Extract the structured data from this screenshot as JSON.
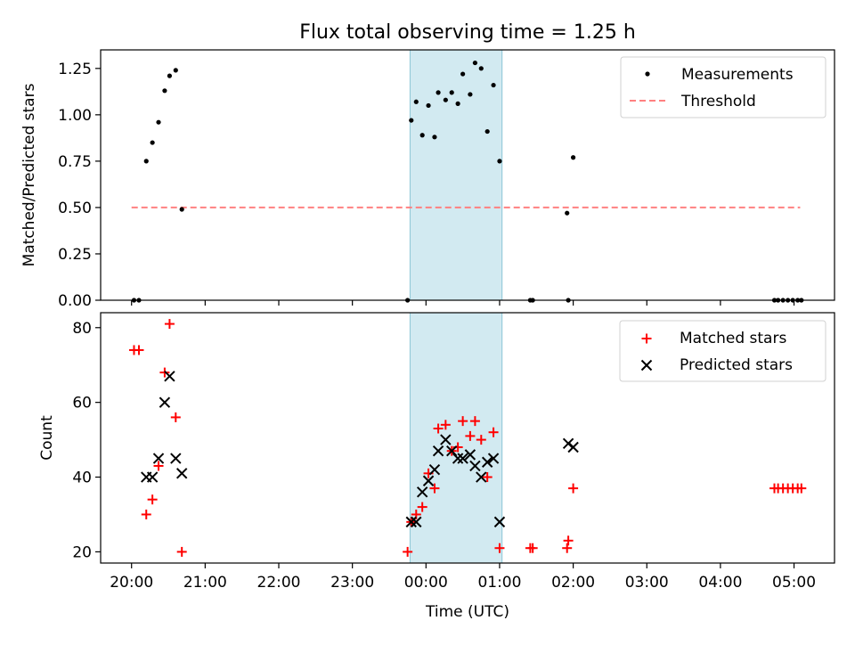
{
  "title": "Flux total observing time = 1.25 h",
  "xlabel": "Time (UTC)",
  "x_ticks": [
    "20:00",
    "21:00",
    "22:00",
    "23:00",
    "00:00",
    "01:00",
    "02:00",
    "03:00",
    "04:00",
    "05:00"
  ],
  "highlight_window": {
    "start": "23:47",
    "end": "01:02",
    "color": "#add8e6"
  },
  "colors": {
    "measurement": "#000000",
    "threshold": "#ff8080",
    "matched": "#ff0000",
    "predicted": "#000000",
    "axes": "#000000"
  },
  "chart_data": [
    {
      "type": "scatter",
      "ylabel": "Matched/Predicted stars",
      "ylim": [
        0,
        1.35
      ],
      "y_ticks": [
        "0.00",
        "0.25",
        "0.50",
        "0.75",
        "1.00",
        "1.25"
      ],
      "legend": {
        "placement": "top-right",
        "entries": [
          "Measurements",
          "Threshold"
        ]
      },
      "threshold": {
        "value": 0.5,
        "x_range": [
          "20:00",
          "05:05"
        ]
      },
      "series": [
        {
          "name": "Measurements",
          "points": [
            [
              "20:02",
              0
            ],
            [
              "20:06",
              0
            ],
            [
              "20:12",
              0.75
            ],
            [
              "20:17",
              0.85
            ],
            [
              "20:22",
              0.96
            ],
            [
              "20:27",
              1.13
            ],
            [
              "20:31",
              1.21
            ],
            [
              "20:36",
              1.24
            ],
            [
              "20:41",
              0.49
            ],
            [
              "23:45",
              0
            ],
            [
              "23:48",
              0.97
            ],
            [
              "23:52",
              1.07
            ],
            [
              "23:57",
              0.89
            ],
            [
              "00:02",
              1.05
            ],
            [
              "00:07",
              0.88
            ],
            [
              "00:10",
              1.12
            ],
            [
              "00:16",
              1.08
            ],
            [
              "00:21",
              1.12
            ],
            [
              "00:26",
              1.06
            ],
            [
              "00:30",
              1.22
            ],
            [
              "00:36",
              1.11
            ],
            [
              "00:40",
              1.28
            ],
            [
              "00:45",
              1.25
            ],
            [
              "00:50",
              0.91
            ],
            [
              "00:55",
              1.16
            ],
            [
              "01:00",
              0.75
            ],
            [
              "01:25",
              0
            ],
            [
              "01:27",
              0
            ],
            [
              "01:55",
              0.47
            ],
            [
              "01:56",
              0
            ],
            [
              "02:00",
              0.77
            ],
            [
              "04:44",
              0
            ],
            [
              "04:47",
              0
            ],
            [
              "04:51",
              0
            ],
            [
              "04:55",
              0
            ],
            [
              "04:59",
              0
            ],
            [
              "05:03",
              0
            ],
            [
              "05:06",
              0
            ]
          ]
        }
      ]
    },
    {
      "type": "scatter",
      "ylabel": "Count",
      "ylim": [
        17,
        84
      ],
      "y_ticks": [
        "20",
        "40",
        "60",
        "80"
      ],
      "legend": {
        "placement": "top-right",
        "entries": [
          "Matched stars",
          "Predicted stars"
        ]
      },
      "series": [
        {
          "name": "Matched stars",
          "marker": "plus",
          "points": [
            [
              "20:02",
              74
            ],
            [
              "20:06",
              74
            ],
            [
              "20:12",
              30
            ],
            [
              "20:17",
              34
            ],
            [
              "20:22",
              43
            ],
            [
              "20:27",
              68
            ],
            [
              "20:31",
              81
            ],
            [
              "20:36",
              56
            ],
            [
              "20:41",
              20
            ],
            [
              "23:45",
              20
            ],
            [
              "23:48",
              28
            ],
            [
              "23:52",
              30
            ],
            [
              "23:57",
              32
            ],
            [
              "00:02",
              41
            ],
            [
              "00:07",
              37
            ],
            [
              "00:10",
              53
            ],
            [
              "00:16",
              54
            ],
            [
              "00:21",
              47
            ],
            [
              "00:26",
              48
            ],
            [
              "00:30",
              55
            ],
            [
              "00:36",
              51
            ],
            [
              "00:40",
              55
            ],
            [
              "00:45",
              50
            ],
            [
              "00:50",
              40
            ],
            [
              "00:55",
              52
            ],
            [
              "01:00",
              21
            ],
            [
              "01:25",
              21
            ],
            [
              "01:27",
              21
            ],
            [
              "01:55",
              21
            ],
            [
              "01:56",
              23
            ],
            [
              "02:00",
              37
            ],
            [
              "04:44",
              37
            ],
            [
              "04:47",
              37
            ],
            [
              "04:51",
              37
            ],
            [
              "04:55",
              37
            ],
            [
              "04:59",
              37
            ],
            [
              "05:03",
              37
            ],
            [
              "05:06",
              37
            ]
          ]
        },
        {
          "name": "Predicted stars",
          "marker": "x",
          "points": [
            [
              "20:12",
              40
            ],
            [
              "20:17",
              40
            ],
            [
              "20:22",
              45
            ],
            [
              "20:27",
              60
            ],
            [
              "20:31",
              67
            ],
            [
              "20:36",
              45
            ],
            [
              "20:41",
              41
            ],
            [
              "23:48",
              28
            ],
            [
              "23:52",
              28
            ],
            [
              "23:57",
              36
            ],
            [
              "00:02",
              39
            ],
            [
              "00:07",
              42
            ],
            [
              "00:10",
              47
            ],
            [
              "00:16",
              50
            ],
            [
              "00:21",
              47
            ],
            [
              "00:26",
              45
            ],
            [
              "00:30",
              45
            ],
            [
              "00:36",
              46
            ],
            [
              "00:40",
              43
            ],
            [
              "00:45",
              40
            ],
            [
              "00:50",
              44
            ],
            [
              "00:55",
              45
            ],
            [
              "01:00",
              28
            ],
            [
              "01:56",
              49
            ],
            [
              "02:00",
              48
            ]
          ]
        }
      ]
    }
  ]
}
